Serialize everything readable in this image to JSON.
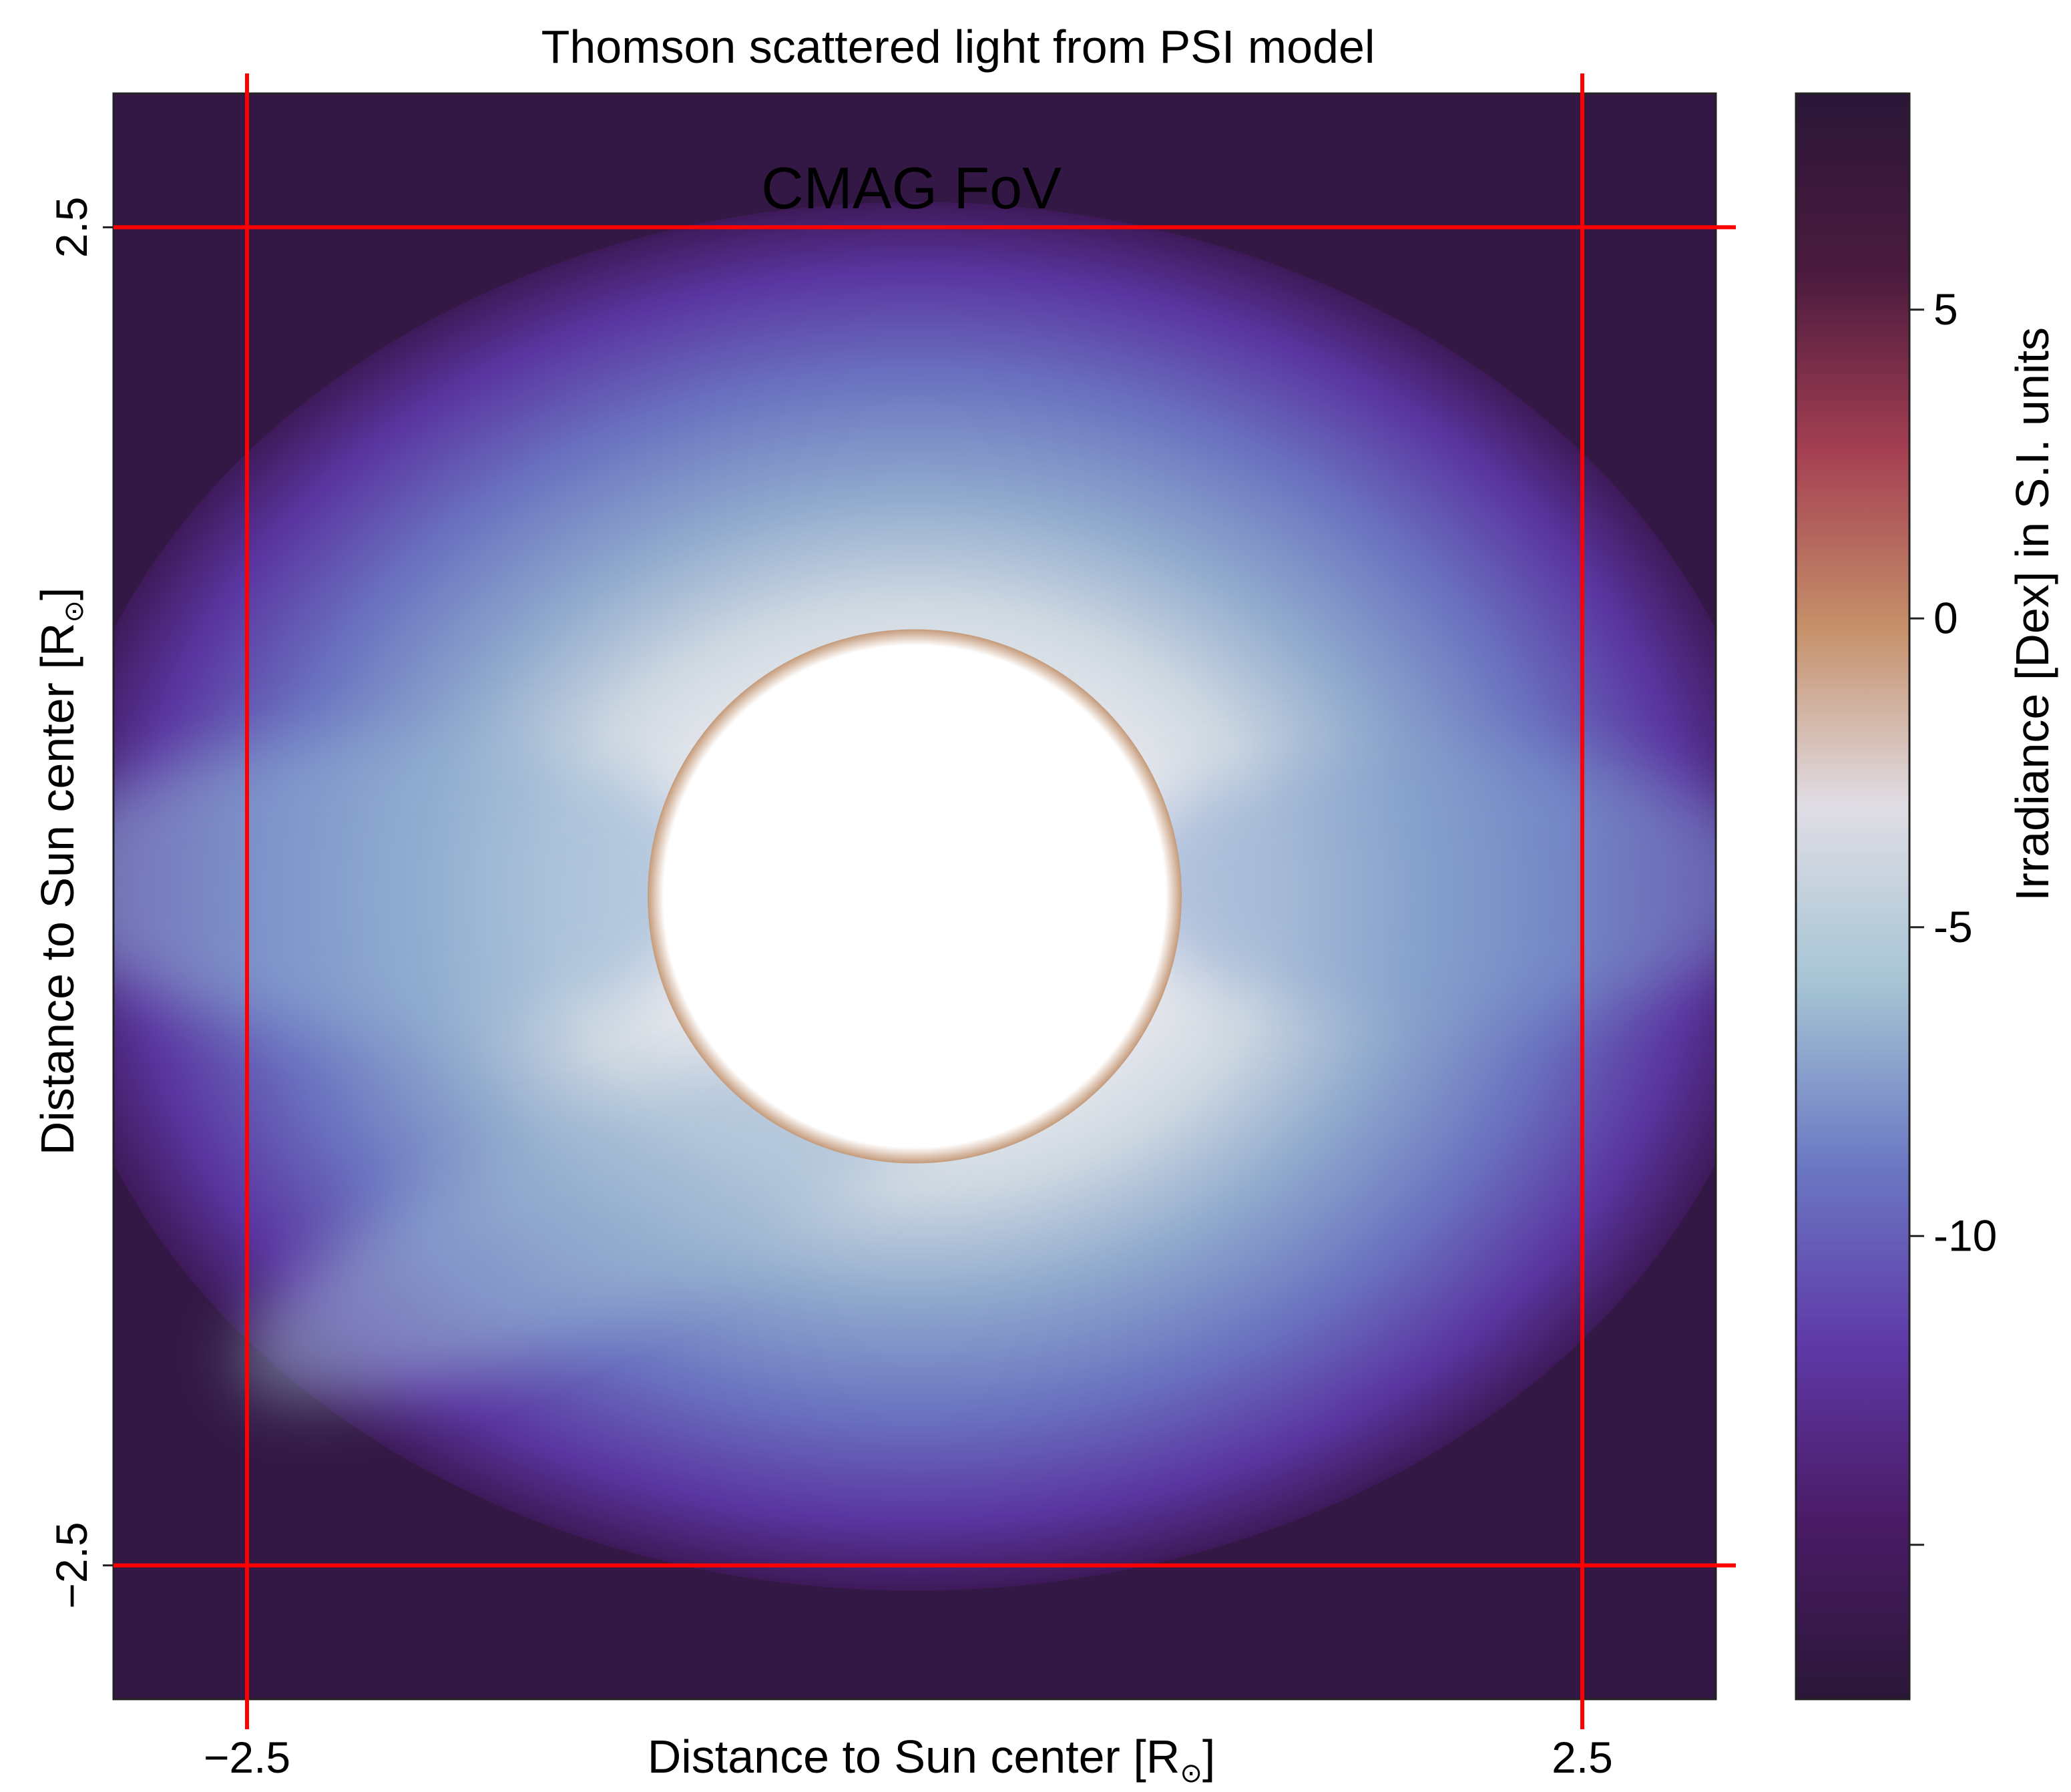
{
  "chart_data": {
    "type": "heatmap",
    "title": "Thomson scattered light from PSI model",
    "xlabel": "Distance to Sun center [R",
    "ylabel": "Distance to Sun center [R",
    "unit_subscript": "⊙",
    "x_ticks": [
      -2.5,
      2.5
    ],
    "y_ticks": [
      -2.5,
      2.5
    ],
    "x_tick_labels": [
      "−2.5",
      "2.5"
    ],
    "y_tick_labels": [
      "−2.5",
      "2.5"
    ],
    "xlim": [
      -3.0,
      3.0
    ],
    "ylim": [
      -3.0,
      3.0
    ],
    "occulter_radius": 1.0,
    "annotation": "CMAG FoV",
    "fov": {
      "xmin": -2.5,
      "xmax": 2.5,
      "ymin": -2.5,
      "ymax": 2.5,
      "color": "#ff0000"
    },
    "colorbar": {
      "label": "Irradiance [Dex] in S.I. units",
      "range": [
        -17.5,
        8.5
      ],
      "ticks": [
        5,
        0,
        -5,
        -10,
        -15
      ],
      "tick_labels": [
        "5",
        "0",
        "-5",
        "-10",
        ""
      ],
      "colormap": [
        "#2b1738",
        "#4a1b66",
        "#5f3aa8",
        "#6b78c3",
        "#a5c4d4",
        "#e0dde5",
        "#c6906a",
        "#a43f52",
        "#4a1a3e",
        "#2b1738"
      ]
    },
    "grid": false,
    "legend": "none"
  }
}
